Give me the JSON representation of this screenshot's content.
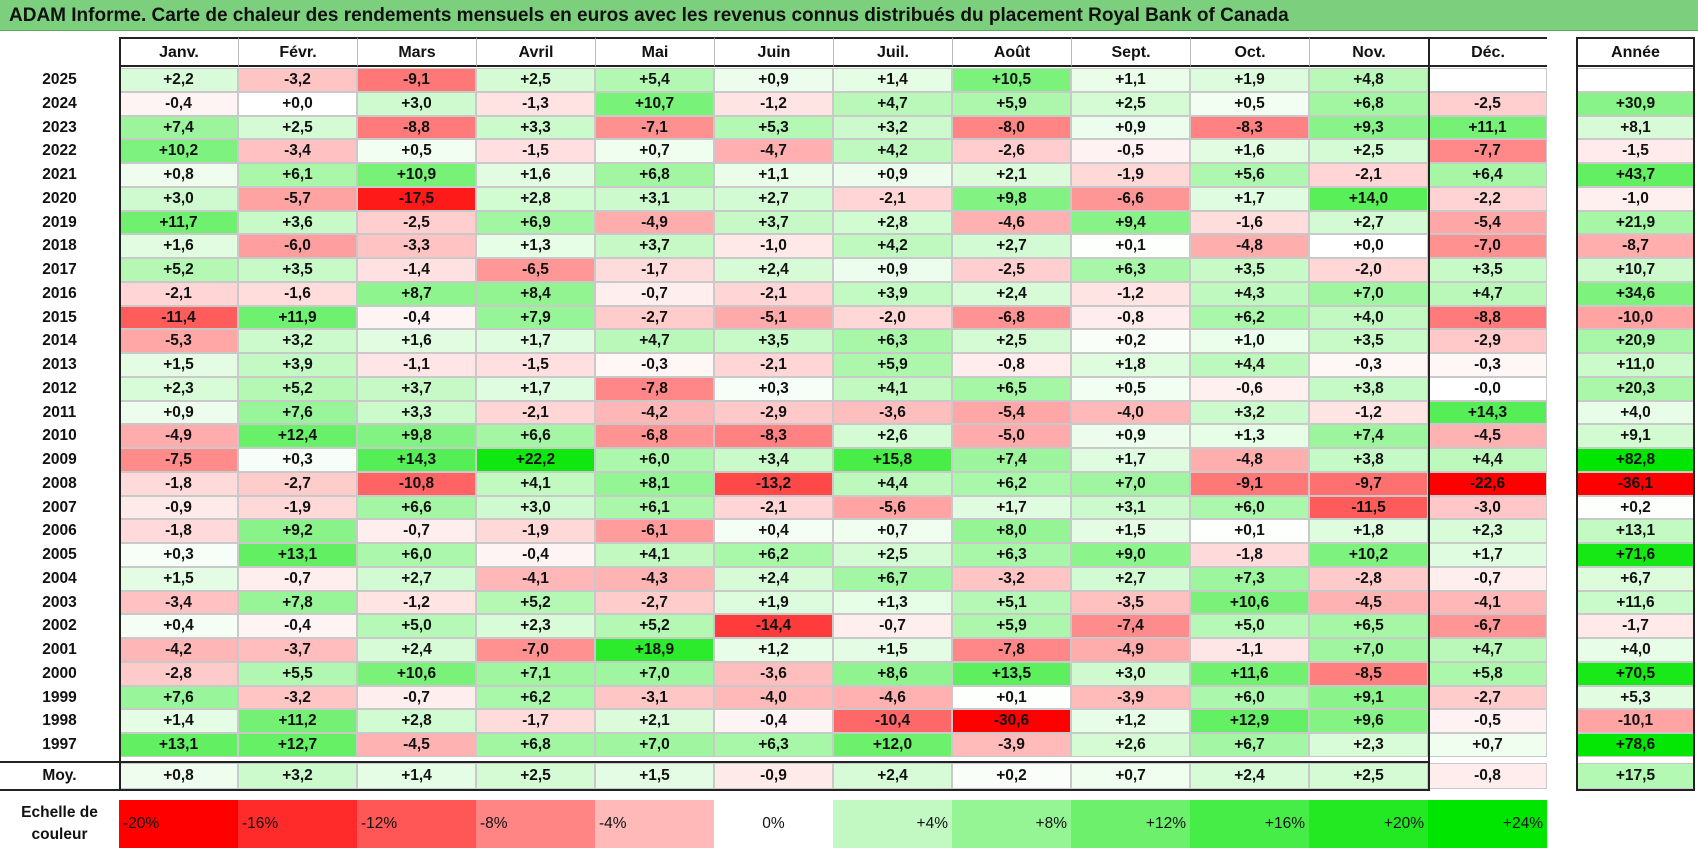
{
  "title": "ADAM Informe. Carte de chaleur des rendements mensuels en euros avec les revenus connus distribués du placement Royal Bank of Canada",
  "chart_data": {
    "type": "heatmap",
    "columns": [
      "Janv.",
      "Févr.",
      "Mars",
      "Avril",
      "Mai",
      "Juin",
      "Juil.",
      "Août",
      "Sept.",
      "Oct.",
      "Nov.",
      "Déc."
    ],
    "year_column": "Année",
    "rows": [
      {
        "year": "2025",
        "values": [
          "+2,2",
          "-3,2",
          "-9,1",
          "+2,5",
          "+5,4",
          "+0,9",
          "+1,4",
          "+10,5",
          "+1,1",
          "+1,9",
          "+4,8",
          ""
        ],
        "annual": ""
      },
      {
        "year": "2024",
        "values": [
          "-0,4",
          "+0,0",
          "+3,0",
          "-1,3",
          "+10,7",
          "-1,2",
          "+4,7",
          "+5,9",
          "+2,5",
          "+0,5",
          "+6,8",
          "-2,5"
        ],
        "annual": "+30,9"
      },
      {
        "year": "2023",
        "values": [
          "+7,4",
          "+2,5",
          "-8,8",
          "+3,3",
          "-7,1",
          "+5,3",
          "+3,2",
          "-8,0",
          "+0,9",
          "-8,3",
          "+9,3",
          "+11,1"
        ],
        "annual": "+8,1"
      },
      {
        "year": "2022",
        "values": [
          "+10,2",
          "-3,4",
          "+0,5",
          "-1,5",
          "+0,7",
          "-4,7",
          "+4,2",
          "-2,6",
          "-0,5",
          "+1,6",
          "+2,5",
          "-7,7"
        ],
        "annual": "-1,5"
      },
      {
        "year": "2021",
        "values": [
          "+0,8",
          "+6,1",
          "+10,9",
          "+1,6",
          "+6,8",
          "+1,1",
          "+0,9",
          "+2,1",
          "-1,9",
          "+5,6",
          "-2,1",
          "+6,4"
        ],
        "annual": "+43,7"
      },
      {
        "year": "2020",
        "values": [
          "+3,0",
          "-5,7",
          "-17,5",
          "+2,8",
          "+3,1",
          "+2,7",
          "-2,1",
          "+9,8",
          "-6,6",
          "+1,7",
          "+14,0",
          "-2,2"
        ],
        "annual": "-1,0"
      },
      {
        "year": "2019",
        "values": [
          "+11,7",
          "+3,6",
          "-2,5",
          "+6,9",
          "-4,9",
          "+3,7",
          "+2,8",
          "-4,6",
          "+9,4",
          "-1,6",
          "+2,7",
          "-5,4"
        ],
        "annual": "+21,9"
      },
      {
        "year": "2018",
        "values": [
          "+1,6",
          "-6,0",
          "-3,3",
          "+1,3",
          "+3,7",
          "-1,0",
          "+4,2",
          "+2,7",
          "+0,1",
          "-4,8",
          "+0,0",
          "-7,0"
        ],
        "annual": "-8,7"
      },
      {
        "year": "2017",
        "values": [
          "+5,2",
          "+3,5",
          "-1,4",
          "-6,5",
          "-1,7",
          "+2,4",
          "+0,9",
          "-2,5",
          "+6,3",
          "+3,5",
          "-2,0",
          "+3,5"
        ],
        "annual": "+10,7"
      },
      {
        "year": "2016",
        "values": [
          "-2,1",
          "-1,6",
          "+8,7",
          "+8,4",
          "-0,7",
          "-2,1",
          "+3,9",
          "+2,4",
          "-1,2",
          "+4,3",
          "+7,0",
          "+4,7"
        ],
        "annual": "+34,6"
      },
      {
        "year": "2015",
        "values": [
          "-11,4",
          "+11,9",
          "-0,4",
          "+7,9",
          "-2,7",
          "-5,1",
          "-2,0",
          "-6,8",
          "-0,8",
          "+6,2",
          "+4,0",
          "-8,8"
        ],
        "annual": "-10,0"
      },
      {
        "year": "2014",
        "values": [
          "-5,3",
          "+3,2",
          "+1,6",
          "+1,7",
          "+4,7",
          "+3,5",
          "+6,3",
          "+2,5",
          "+0,2",
          "+1,0",
          "+3,5",
          "-2,9"
        ],
        "annual": "+20,9"
      },
      {
        "year": "2013",
        "values": [
          "+1,5",
          "+3,9",
          "-1,1",
          "-1,5",
          "-0,3",
          "-2,1",
          "+5,9",
          "-0,8",
          "+1,8",
          "+4,4",
          "-0,3",
          "-0,3"
        ],
        "annual": "+11,0"
      },
      {
        "year": "2012",
        "values": [
          "+2,3",
          "+5,2",
          "+3,7",
          "+1,7",
          "-7,8",
          "+0,3",
          "+4,1",
          "+6,5",
          "+0,5",
          "-0,6",
          "+3,8",
          "-0,0"
        ],
        "annual": "+20,3"
      },
      {
        "year": "2011",
        "values": [
          "+0,9",
          "+7,6",
          "+3,3",
          "-2,1",
          "-4,2",
          "-2,9",
          "-3,6",
          "-5,4",
          "-4,0",
          "+3,2",
          "-1,2",
          "+14,3"
        ],
        "annual": "+4,0"
      },
      {
        "year": "2010",
        "values": [
          "-4,9",
          "+12,4",
          "+9,8",
          "+6,6",
          "-6,8",
          "-8,3",
          "+2,6",
          "-5,0",
          "+0,9",
          "+1,3",
          "+7,4",
          "-4,5"
        ],
        "annual": "+9,1"
      },
      {
        "year": "2009",
        "values": [
          "-7,5",
          "+0,3",
          "+14,3",
          "+22,2",
          "+6,0",
          "+3,4",
          "+15,8",
          "+7,4",
          "+1,7",
          "-4,8",
          "+3,8",
          "+4,4"
        ],
        "annual": "+82,8"
      },
      {
        "year": "2008",
        "values": [
          "-1,8",
          "-2,7",
          "-10,8",
          "+4,1",
          "+8,1",
          "-13,2",
          "+4,4",
          "+6,2",
          "+7,0",
          "-9,1",
          "-9,7",
          "-22,6"
        ],
        "annual": "-36,1"
      },
      {
        "year": "2007",
        "values": [
          "-0,9",
          "-1,9",
          "+6,6",
          "+3,0",
          "+6,1",
          "-2,1",
          "-5,6",
          "+1,7",
          "+3,1",
          "+6,0",
          "-11,5",
          "-3,0"
        ],
        "annual": "+0,2"
      },
      {
        "year": "2006",
        "values": [
          "-1,8",
          "+9,2",
          "-0,7",
          "-1,9",
          "-6,1",
          "+0,4",
          "+0,7",
          "+8,0",
          "+1,5",
          "+0,1",
          "+1,8",
          "+2,3"
        ],
        "annual": "+13,1"
      },
      {
        "year": "2005",
        "values": [
          "+0,3",
          "+13,1",
          "+6,0",
          "-0,4",
          "+4,1",
          "+6,2",
          "+2,5",
          "+6,3",
          "+9,0",
          "-1,8",
          "+10,2",
          "+1,7"
        ],
        "annual": "+71,6"
      },
      {
        "year": "2004",
        "values": [
          "+1,5",
          "-0,7",
          "+2,7",
          "-4,1",
          "-4,3",
          "+2,4",
          "+6,7",
          "-3,2",
          "+2,7",
          "+7,3",
          "-2,8",
          "-0,7"
        ],
        "annual": "+6,7"
      },
      {
        "year": "2003",
        "values": [
          "-3,4",
          "+7,8",
          "-1,2",
          "+5,2",
          "-2,7",
          "+1,9",
          "+1,3",
          "+5,1",
          "-3,5",
          "+10,6",
          "-4,5",
          "-4,1"
        ],
        "annual": "+11,6"
      },
      {
        "year": "2002",
        "values": [
          "+0,4",
          "-0,4",
          "+5,0",
          "+2,3",
          "+5,2",
          "-14,4",
          "-0,7",
          "+5,9",
          "-7,4",
          "+5,0",
          "+6,5",
          "-6,7"
        ],
        "annual": "-1,7"
      },
      {
        "year": "2001",
        "values": [
          "-4,2",
          "-3,7",
          "+2,4",
          "-7,0",
          "+18,9",
          "+1,2",
          "+1,5",
          "-7,8",
          "-4,9",
          "-1,1",
          "+7,0",
          "+4,7"
        ],
        "annual": "+4,0"
      },
      {
        "year": "2000",
        "values": [
          "-2,8",
          "+5,5",
          "+10,6",
          "+7,1",
          "+7,0",
          "-3,6",
          "+8,6",
          "+13,5",
          "+3,0",
          "+11,6",
          "-8,5",
          "+5,8"
        ],
        "annual": "+70,5"
      },
      {
        "year": "1999",
        "values": [
          "+7,6",
          "-3,2",
          "-0,7",
          "+6,2",
          "-3,1",
          "-4,0",
          "-4,6",
          "+0,1",
          "-3,9",
          "+6,0",
          "+9,1",
          "-2,7"
        ],
        "annual": "+5,3"
      },
      {
        "year": "1998",
        "values": [
          "+1,4",
          "+11,2",
          "+2,8",
          "-1,7",
          "+2,1",
          "-0,4",
          "-10,4",
          "-30,6",
          "+1,2",
          "+12,9",
          "+9,6",
          "-0,5"
        ],
        "annual": "-10,1"
      },
      {
        "year": "1997",
        "values": [
          "+13,1",
          "+12,7",
          "-4,5",
          "+6,8",
          "+7,0",
          "+6,3",
          "+12,0",
          "-3,9",
          "+2,6",
          "+6,7",
          "+2,3",
          "+0,7"
        ],
        "annual": "+78,6"
      }
    ],
    "average": {
      "label": "Moy.",
      "values": [
        "+0,8",
        "+3,2",
        "+1,4",
        "+2,5",
        "+1,5",
        "-0,9",
        "+2,4",
        "+0,2",
        "+0,7",
        "+2,4",
        "+2,5",
        "-0,8"
      ],
      "annual": "+17,5"
    },
    "color_scale": {
      "label": "Echelle de couleur",
      "stops": [
        "-20%",
        "-16%",
        "-12%",
        "-8%",
        "-4%",
        "0%",
        "+4%",
        "+8%",
        "+12%",
        "+16%",
        "+20%",
        "+24%"
      ],
      "negative_color": "#ff0000",
      "neutral_color": "#ffffff",
      "positive_color": "#00e000"
    }
  }
}
